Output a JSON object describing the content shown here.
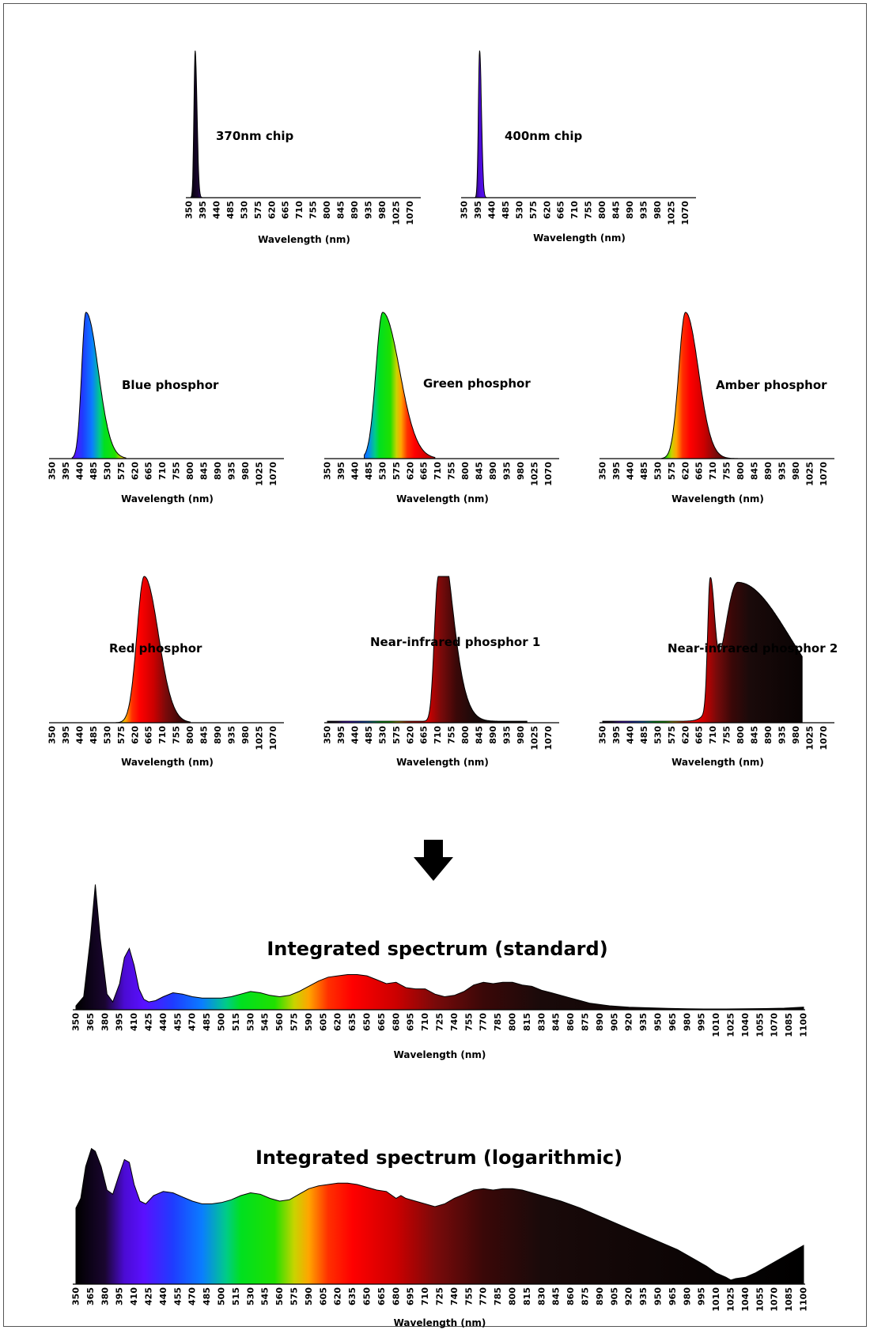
{
  "colors": {
    "axis": "#000000",
    "frame": "#555555",
    "arrow": "#000000"
  },
  "chart_data": [
    {
      "type": "area",
      "id": "c370",
      "title": "370nm chip",
      "xlabel": "Wavelength (nm)",
      "ticks": [
        "350",
        "395",
        "440",
        "485",
        "530",
        "575",
        "620",
        "665",
        "710",
        "755",
        "800",
        "845",
        "890",
        "935",
        "980",
        "1025",
        "1070"
      ],
      "xlim": [
        350,
        1100
      ],
      "ylim": [
        0,
        1
      ],
      "grid": false,
      "legend": "none",
      "peaks": [
        {
          "center": 370,
          "width_left": 4,
          "width_right": 6,
          "height": 1.0
        }
      ]
    },
    {
      "type": "area",
      "id": "c400",
      "title": "400nm chip",
      "xlabel": "Wavelength (nm)",
      "ticks": [
        "350",
        "395",
        "440",
        "485",
        "530",
        "575",
        "620",
        "665",
        "710",
        "755",
        "800",
        "845",
        "890",
        "935",
        "980",
        "1025",
        "1070"
      ],
      "xlim": [
        350,
        1100
      ],
      "ylim": [
        0,
        1
      ],
      "grid": false,
      "legend": "none",
      "peaks": [
        {
          "center": 400,
          "width_left": 4,
          "width_right": 6,
          "height": 1.0
        }
      ]
    },
    {
      "type": "area",
      "id": "blue",
      "title": "Blue phosphor",
      "xlabel": "Wavelength (nm)",
      "ticks": [
        "350",
        "395",
        "440",
        "485",
        "530",
        "575",
        "620",
        "665",
        "710",
        "755",
        "800",
        "845",
        "890",
        "935",
        "980",
        "1025",
        "1070"
      ],
      "xlim": [
        350,
        1100
      ],
      "ylim": [
        0,
        1
      ],
      "grid": false,
      "legend": "none",
      "range": [
        415,
        590
      ],
      "peaks": [
        {
          "center": 460,
          "width_left": 14,
          "width_right": 40,
          "height": 1.0
        }
      ]
    },
    {
      "type": "area",
      "id": "green",
      "title": "Green phosphor",
      "xlabel": "Wavelength (nm)",
      "ticks": [
        "350",
        "395",
        "440",
        "485",
        "530",
        "575",
        "620",
        "665",
        "710",
        "755",
        "800",
        "845",
        "890",
        "935",
        "980",
        "1025",
        "1070"
      ],
      "xlim": [
        350,
        1100
      ],
      "ylim": [
        0,
        1
      ],
      "grid": false,
      "legend": "none",
      "range": [
        470,
        700
      ],
      "peaks": [
        {
          "center": 530,
          "width_left": 22,
          "width_right": 55,
          "height": 1.0
        }
      ]
    },
    {
      "type": "area",
      "id": "amber",
      "title": "Amber phosphor",
      "xlabel": "Wavelength (nm)",
      "ticks": [
        "350",
        "395",
        "440",
        "485",
        "530",
        "575",
        "620",
        "665",
        "710",
        "755",
        "800",
        "845",
        "890",
        "935",
        "980",
        "1025",
        "1070"
      ],
      "xlim": [
        350,
        1100
      ],
      "ylim": [
        0,
        1
      ],
      "grid": false,
      "legend": "none",
      "range": [
        540,
        800
      ],
      "peaks": [
        {
          "center": 620,
          "width_left": 22,
          "width_right": 42,
          "height": 1.0
        }
      ]
    },
    {
      "type": "area",
      "id": "red",
      "title": "Red phosphor",
      "xlabel": "Wavelength (nm)",
      "ticks": [
        "350",
        "395",
        "440",
        "485",
        "530",
        "575",
        "620",
        "665",
        "710",
        "755",
        "800",
        "845",
        "890",
        "935",
        "980",
        "1025",
        "1070"
      ],
      "xlim": [
        350,
        1100
      ],
      "ylim": [
        0,
        1
      ],
      "grid": false,
      "legend": "none",
      "range": [
        555,
        800
      ],
      "peaks": [
        {
          "center": 650,
          "width_left": 24,
          "width_right": 46,
          "height": 1.0
        }
      ]
    },
    {
      "type": "area",
      "id": "nir1",
      "title": "Near-infrared phosphor 1",
      "xlabel": "Wavelength (nm)",
      "ticks": [
        "350",
        "395",
        "440",
        "485",
        "530",
        "575",
        "620",
        "665",
        "710",
        "755",
        "800",
        "845",
        "890",
        "935",
        "980",
        "1025",
        "1070"
      ],
      "xlim": [
        350,
        1100
      ],
      "ylim": [
        0,
        1
      ],
      "grid": false,
      "legend": "none",
      "range": [
        350,
        1000
      ],
      "baseline": 0.01,
      "peaks": [
        {
          "center": 710,
          "width_left": 12,
          "width_right": 50,
          "height": 0.95
        },
        {
          "center": 723,
          "width_left": 6,
          "width_right": 30,
          "height": 0.35
        }
      ]
    },
    {
      "type": "area",
      "id": "nir2",
      "title": "Near-infrared phosphor 2",
      "xlabel": "Wavelength (nm)",
      "ticks": [
        "350",
        "395",
        "440",
        "485",
        "530",
        "575",
        "620",
        "665",
        "710",
        "755",
        "800",
        "845",
        "890",
        "935",
        "980",
        "1025",
        "1070"
      ],
      "xlim": [
        350,
        1100
      ],
      "ylim": [
        0,
        1
      ],
      "grid": false,
      "legend": "none",
      "range": [
        350,
        1000
      ],
      "cutoff": 1000,
      "baseline": 0.01,
      "peaks": [
        {
          "center": 700,
          "width_left": 8,
          "width_right": 14,
          "height": 0.85
        },
        {
          "center": 790,
          "width_left": 45,
          "width_right": 170,
          "height": 0.95
        }
      ]
    },
    {
      "type": "area",
      "id": "std",
      "title": "Integrated spectrum (standard)",
      "xlabel": "Wavelength (nm)",
      "ticks": [
        "350",
        "365",
        "380",
        "395",
        "410",
        "425",
        "440",
        "455",
        "470",
        "485",
        "500",
        "515",
        "530",
        "545",
        "560",
        "575",
        "590",
        "605",
        "620",
        "635",
        "650",
        "665",
        "680",
        "695",
        "710",
        "725",
        "740",
        "755",
        "770",
        "785",
        "800",
        "815",
        "830",
        "845",
        "860",
        "875",
        "890",
        "905",
        "920",
        "935",
        "950",
        "965",
        "980",
        "995",
        "1010",
        "1025",
        "1040",
        "1055",
        "1070",
        "1085",
        "1100"
      ],
      "xlim": [
        350,
        1100
      ],
      "ylim": [
        0,
        1
      ],
      "grid": false,
      "legend": "none",
      "scale": "linear",
      "x": [
        350,
        358,
        365,
        370,
        375,
        382,
        388,
        395,
        400,
        405,
        410,
        415,
        420,
        425,
        432,
        440,
        450,
        460,
        470,
        480,
        490,
        500,
        510,
        520,
        530,
        540,
        550,
        560,
        570,
        580,
        590,
        600,
        610,
        620,
        630,
        640,
        650,
        660,
        670,
        680,
        690,
        700,
        710,
        720,
        730,
        740,
        750,
        760,
        770,
        780,
        790,
        800,
        810,
        820,
        830,
        840,
        850,
        860,
        870,
        880,
        890,
        900,
        920,
        940,
        960,
        980,
        1000,
        1020,
        1040,
        1060,
        1080,
        1100
      ],
      "values": [
        0.03,
        0.1,
        0.55,
        0.96,
        0.55,
        0.12,
        0.06,
        0.2,
        0.4,
        0.47,
        0.34,
        0.16,
        0.08,
        0.06,
        0.07,
        0.1,
        0.13,
        0.12,
        0.1,
        0.09,
        0.09,
        0.09,
        0.1,
        0.12,
        0.14,
        0.13,
        0.11,
        0.1,
        0.11,
        0.14,
        0.18,
        0.22,
        0.25,
        0.26,
        0.27,
        0.27,
        0.26,
        0.23,
        0.2,
        0.21,
        0.17,
        0.16,
        0.16,
        0.12,
        0.1,
        0.11,
        0.14,
        0.19,
        0.21,
        0.2,
        0.21,
        0.21,
        0.19,
        0.18,
        0.15,
        0.13,
        0.11,
        0.09,
        0.07,
        0.05,
        0.04,
        0.03,
        0.02,
        0.015,
        0.01,
        0.008,
        0.006,
        0.006,
        0.007,
        0.009,
        0.012,
        0.02
      ]
    },
    {
      "type": "area",
      "id": "log",
      "title": "Integrated spectrum (logarithmic)",
      "xlabel": "Wavelength (nm)",
      "ticks": [
        "350",
        "365",
        "380",
        "395",
        "410",
        "425",
        "440",
        "455",
        "470",
        "485",
        "500",
        "515",
        "530",
        "545",
        "560",
        "575",
        "590",
        "605",
        "620",
        "635",
        "650",
        "665",
        "680",
        "695",
        "710",
        "725",
        "740",
        "755",
        "770",
        "785",
        "800",
        "815",
        "830",
        "845",
        "860",
        "875",
        "890",
        "905",
        "920",
        "935",
        "950",
        "965",
        "980",
        "995",
        "1010",
        "1025",
        "1040",
        "1055",
        "1070",
        "1085",
        "1100"
      ],
      "xlim": [
        350,
        1100
      ],
      "ylim": [
        0,
        1
      ],
      "grid": false,
      "legend": "none",
      "scale": "log",
      "x": [
        350,
        355,
        360,
        366,
        370,
        376,
        382,
        388,
        394,
        400,
        405,
        410,
        416,
        422,
        430,
        440,
        450,
        460,
        470,
        480,
        490,
        500,
        510,
        520,
        530,
        540,
        550,
        560,
        570,
        580,
        590,
        600,
        610,
        620,
        630,
        640,
        650,
        660,
        670,
        680,
        685,
        690,
        700,
        710,
        720,
        730,
        740,
        750,
        760,
        770,
        780,
        790,
        800,
        810,
        820,
        830,
        850,
        870,
        890,
        910,
        930,
        950,
        970,
        990,
        1000,
        1010,
        1020,
        1025,
        1030,
        1040,
        1050,
        1060,
        1070,
        1080,
        1090,
        1100
      ],
      "values": [
        0.55,
        0.62,
        0.85,
        0.98,
        0.96,
        0.85,
        0.68,
        0.65,
        0.78,
        0.9,
        0.88,
        0.72,
        0.6,
        0.58,
        0.64,
        0.67,
        0.66,
        0.63,
        0.6,
        0.58,
        0.58,
        0.59,
        0.61,
        0.64,
        0.66,
        0.65,
        0.62,
        0.6,
        0.61,
        0.65,
        0.69,
        0.71,
        0.72,
        0.73,
        0.73,
        0.72,
        0.7,
        0.68,
        0.67,
        0.62,
        0.64,
        0.62,
        0.6,
        0.58,
        0.56,
        0.58,
        0.62,
        0.65,
        0.68,
        0.69,
        0.68,
        0.69,
        0.69,
        0.68,
        0.66,
        0.64,
        0.6,
        0.55,
        0.49,
        0.43,
        0.37,
        0.31,
        0.25,
        0.17,
        0.13,
        0.08,
        0.05,
        0.03,
        0.04,
        0.05,
        0.08,
        0.12,
        0.16,
        0.2,
        0.24,
        0.28
      ]
    }
  ]
}
